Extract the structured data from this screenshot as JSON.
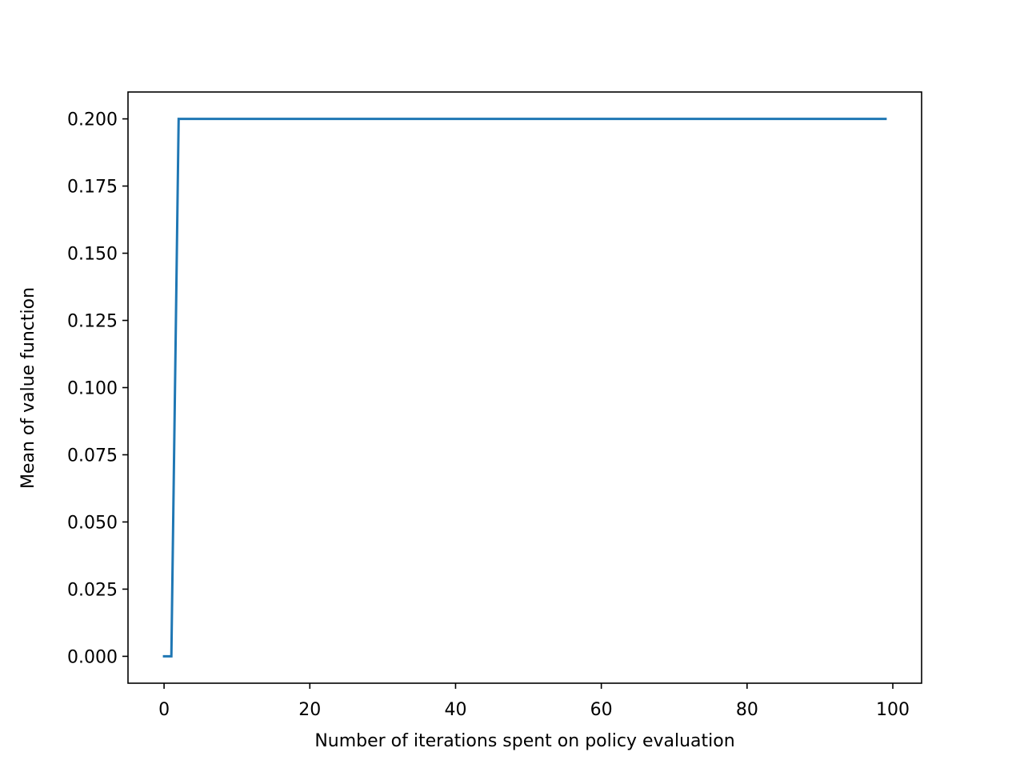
{
  "chart_data": {
    "type": "line",
    "title": "",
    "xlabel": "Number of iterations spent on policy evaluation",
    "ylabel": "Mean of value function",
    "xlim": [
      -4.95,
      103.95
    ],
    "ylim": [
      -0.01,
      0.21
    ],
    "xticks": [
      0,
      20,
      40,
      60,
      80,
      100
    ],
    "xtick_labels": [
      "0",
      "20",
      "40",
      "60",
      "80",
      "100"
    ],
    "yticks": [
      0.0,
      0.025,
      0.05,
      0.075,
      0.1,
      0.125,
      0.15,
      0.175,
      0.2
    ],
    "ytick_labels": [
      "0.000",
      "0.025",
      "0.050",
      "0.075",
      "0.100",
      "0.125",
      "0.150",
      "0.175",
      "0.200"
    ],
    "grid": false,
    "legend": "none",
    "series": [
      {
        "color": "#1f77b4",
        "x": [
          0,
          1,
          2,
          99
        ],
        "y": [
          0.0,
          0.0,
          0.2,
          0.2
        ]
      }
    ]
  }
}
